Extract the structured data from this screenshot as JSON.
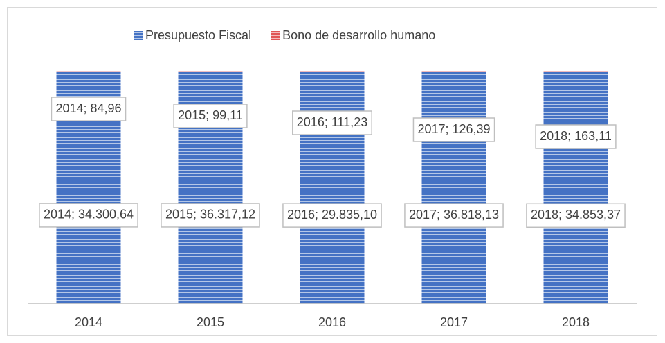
{
  "chart_data": {
    "type": "bar",
    "stacked": "percent",
    "categories": [
      "2014",
      "2015",
      "2016",
      "2017",
      "2018"
    ],
    "series": [
      {
        "name": "Presupuesto Fiscal",
        "color": "#4472C4",
        "values": [
          34300.64,
          36317.12,
          29835.1,
          36818.13,
          34853.37
        ],
        "value_labels": [
          "2014; 34.300,64",
          "2015; 36.317,12",
          "2016; 29.835,10",
          "2017; 36.818,13",
          "2018; 34.853,37"
        ]
      },
      {
        "name": "Bono de desarrollo humano",
        "color": "#E05555",
        "values": [
          84.96,
          99.11,
          111.23,
          126.39,
          163.11
        ],
        "value_labels": [
          "2014; 84,96",
          "2015; 99,11",
          "2016; 111,23",
          "2017; 126,39",
          "2018; 163,11"
        ]
      }
    ],
    "legend": "top"
  }
}
